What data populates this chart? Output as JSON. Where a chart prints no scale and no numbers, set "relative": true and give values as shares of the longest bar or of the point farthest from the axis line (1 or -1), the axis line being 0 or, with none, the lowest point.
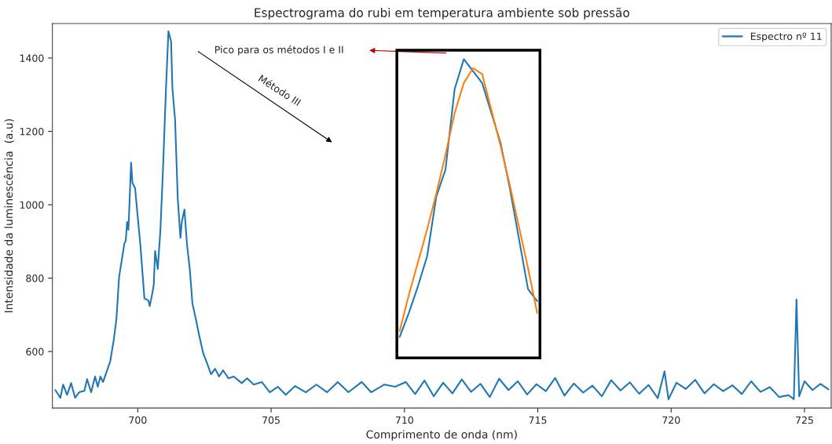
{
  "chart_data": [
    {
      "type": "line",
      "title": "Espectrograma do rubi em temperatura ambiente sob pressão",
      "xlabel": "Comprimento de onda (nm)",
      "ylabel": "Intensidade da luminescência  (a.u)",
      "xlim": [
        696.8,
        726.0
      ],
      "ylim": [
        446,
        1494
      ],
      "xticks": [
        700,
        705,
        710,
        715,
        720,
        725
      ],
      "yticks": [
        600,
        800,
        1000,
        1200,
        1400
      ],
      "grid": false,
      "legend": "top right",
      "annotations": [
        "Pico para os métodos I e II",
        "Método III"
      ],
      "series": [
        {
          "name": "Espectro nº 11",
          "color": "#1f77b4",
          "x": [
            696.91,
            697.1,
            697.2,
            697.35,
            697.5,
            697.65,
            697.8,
            698.0,
            698.1,
            698.25,
            698.4,
            698.5,
            698.6,
            698.7,
            698.8,
            698.97,
            699.1,
            699.2,
            699.3,
            699.5,
            699.55,
            699.6,
            699.65,
            699.75,
            699.8,
            699.9,
            700.0,
            700.1,
            700.25,
            700.4,
            700.45,
            700.55,
            700.6,
            700.65,
            700.75,
            700.85,
            700.95,
            701.05,
            701.15,
            701.25,
            701.3,
            701.4,
            701.5,
            701.6,
            701.65,
            701.75,
            701.85,
            701.95,
            702.05,
            702.2,
            702.3,
            702.45,
            702.6,
            702.75,
            702.9,
            703.05,
            703.2,
            703.4,
            703.6,
            703.9,
            704.1,
            704.35,
            704.65,
            704.95,
            705.25,
            705.55,
            705.9,
            706.3,
            706.7,
            707.1,
            707.5,
            707.9,
            708.4,
            708.75,
            709.25,
            709.65,
            710.05,
            710.4,
            710.75,
            711.1,
            711.45,
            711.8,
            712.15,
            712.5,
            712.85,
            713.2,
            713.55,
            713.9,
            714.25,
            714.6,
            714.95,
            715.3,
            715.65,
            716.0,
            716.35,
            716.7,
            717.05,
            717.4,
            717.75,
            718.1,
            718.45,
            718.8,
            719.15,
            719.5,
            719.75,
            719.9,
            720.2,
            720.55,
            720.9,
            721.25,
            721.6,
            721.95,
            722.3,
            722.65,
            723.0,
            723.35,
            723.7,
            724.05,
            724.4,
            724.6,
            724.7,
            724.8,
            725.0,
            725.3,
            725.6,
            725.9
          ],
          "values": [
            495,
            474,
            510,
            482,
            514,
            474,
            489,
            493,
            525,
            489,
            532,
            504,
            532,
            517,
            538,
            574,
            632,
            688,
            803,
            895,
            902,
            953,
            932,
            1115,
            1060,
            1045,
            966,
            889,
            745,
            739,
            724,
            760,
            782,
            874,
            825,
            932,
            1103,
            1302,
            1473,
            1445,
            1317,
            1231,
            1017,
            910,
            953,
            987,
            889,
            825,
            731,
            681,
            645,
            596,
            568,
            538,
            553,
            532,
            549,
            527,
            532,
            514,
            527,
            510,
            517,
            489,
            504,
            482,
            506,
            489,
            510,
            489,
            517,
            489,
            517,
            489,
            510,
            504,
            517,
            484,
            521,
            478,
            515,
            486,
            524,
            490,
            512,
            476,
            526,
            495,
            519,
            483,
            511,
            492,
            528,
            480,
            513,
            488,
            507,
            478,
            522,
            494,
            516,
            485,
            509,
            473,
            546,
            470,
            515,
            498,
            523,
            486,
            511,
            492,
            508,
            484,
            519,
            490,
            503,
            476,
            481,
            470,
            742,
            478,
            519,
            495,
            512,
            497
          ]
        }
      ]
    },
    {
      "type": "line",
      "relative": true,
      "categories": [
        null,
        null,
        null,
        null,
        null,
        null,
        null,
        null,
        null,
        null,
        null,
        null,
        null,
        null,
        null,
        null
      ],
      "series": [
        {
          "color": "#1f77b4",
          "values": [
            0.07,
            0.15,
            0.24,
            0.34,
            0.54,
            0.63,
            0.9,
            1.0,
            0.96,
            0.92,
            0.82,
            0.72,
            0.57,
            0.4,
            0.23,
            0.19
          ]
        },
        {
          "color": "#ff7f0e",
          "values": [
            0.09,
            0.21,
            0.32,
            0.43,
            0.55,
            0.68,
            0.82,
            0.92,
            0.97,
            0.95,
            0.83,
            0.71,
            0.58,
            0.44,
            0.3,
            0.15
          ]
        }
      ]
    }
  ]
}
